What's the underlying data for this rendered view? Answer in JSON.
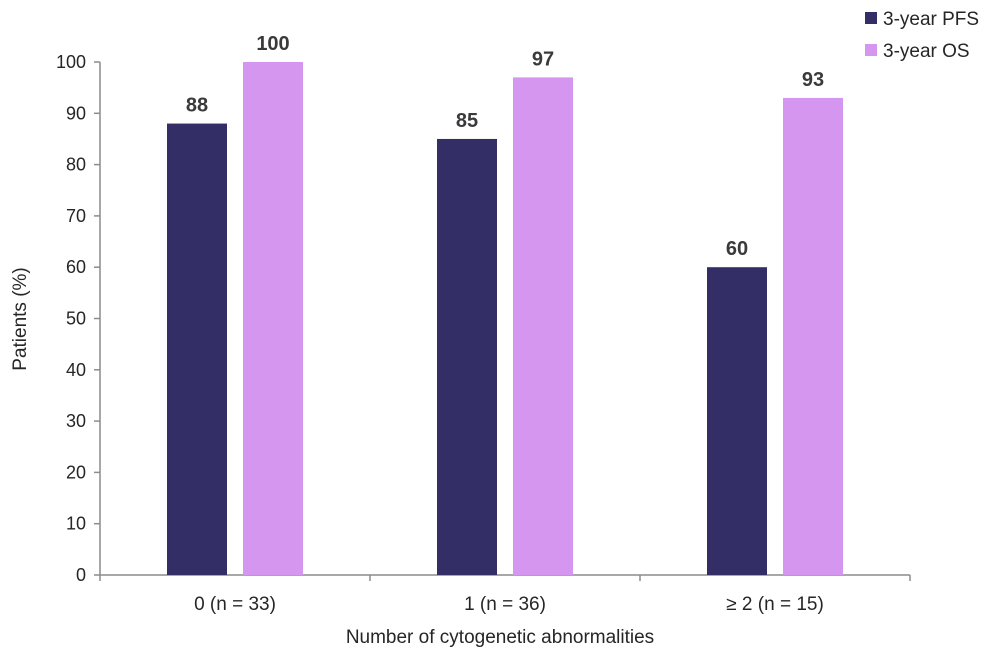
{
  "chart_data": {
    "type": "bar",
    "categories": [
      "0 (n = 33)",
      "1 (n = 36)",
      "≥ 2 (n = 15)"
    ],
    "series": [
      {
        "name": "3-year PFS",
        "values": [
          88,
          85,
          60
        ],
        "color": "#332e66"
      },
      {
        "name": "3-year OS",
        "values": [
          100,
          97,
          93
        ],
        "color": "#d496ef"
      }
    ],
    "title": "",
    "xlabel": "Number of cytogenetic abnormalities",
    "ylabel": "Patients (%)",
    "ylim": [
      0,
      100
    ],
    "yticks": [
      0,
      10,
      20,
      30,
      40,
      50,
      60,
      70,
      80,
      90,
      100
    ],
    "grid": false,
    "legend_position": "top-right",
    "axis_color": "#8c8c8c"
  }
}
